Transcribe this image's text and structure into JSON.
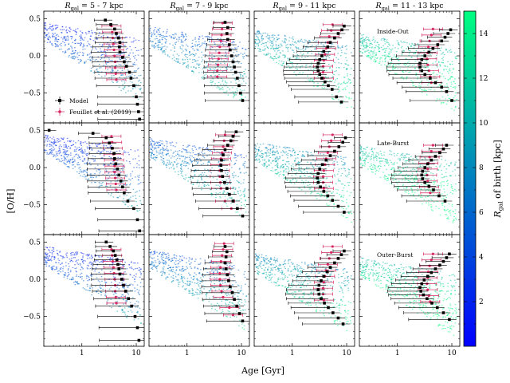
{
  "chart_data": {
    "type": "scatter",
    "xlabel": "Age [Gyr]",
    "ylabel": "[O/H]",
    "xscale": "log",
    "xlim": [
      0.2,
      14
    ],
    "ylim": [
      -0.9,
      0.6
    ],
    "x_ticks": [
      1,
      10
    ],
    "x_tick_labels": [
      "1",
      "10"
    ],
    "y_ticks": [
      -0.5,
      0.0,
      0.5
    ],
    "y_tick_labels": [
      "−0.5",
      "0.0",
      "0.5"
    ],
    "grid": false,
    "columns": [
      "R_gal = 5 - 7 kpc",
      "R_gal = 7 - 9 kpc",
      "R_gal = 9 - 11 kpc",
      "R_gal = 11 - 13 kpc"
    ],
    "columns_display": [
      {
        "pre": "R",
        "sub": "gal",
        "post": " = 5 - 7 kpc"
      },
      {
        "pre": "R",
        "sub": "gal",
        "post": " = 7 - 9 kpc"
      },
      {
        "pre": "R",
        "sub": "gal",
        "post": " = 9 - 11 kpc"
      },
      {
        "pre": "R",
        "sub": "gal",
        "post": " = 11 - 13 kpc"
      }
    ],
    "rows": [
      "Inside-Out",
      "Late-Burst",
      "Outer-Burst"
    ],
    "legend": {
      "placement": "lower-left of top-left panel",
      "entries": [
        "Model",
        "Feuillet et al. (2019)"
      ],
      "colors": [
        "#000000",
        "#d62760"
      ]
    },
    "colorbar": {
      "label": "R_gal of birth [kpc]",
      "label_display": {
        "pre": "R",
        "sub": "gal",
        "post": " of birth [kpc]"
      },
      "range": [
        0,
        15
      ],
      "ticks": [
        2,
        4,
        6,
        8,
        10,
        12,
        14
      ],
      "tick_labels": [
        "2",
        "4",
        "6",
        "8",
        "10",
        "12",
        "14"
      ],
      "colormap": "winter",
      "color_low": "#0000ff",
      "color_high": "#00ff80"
    },
    "series": [
      {
        "name": "Model",
        "panels": [
          [
            {
              "x": [
                2.7,
                3.4,
                4.0,
                4.3,
                4.7,
                5.0,
                4.9,
                5.0,
                5.6,
                6.0,
                6.6,
                7.5,
                8.0,
                9.0,
                10.0,
                10.5,
                11.0,
                11.5
              ],
              "y": [
                0.48,
                0.42,
                0.36,
                0.3,
                0.24,
                0.18,
                0.12,
                0.05,
                -0.02,
                -0.08,
                -0.14,
                -0.22,
                -0.3,
                -0.4,
                -0.55,
                -0.65,
                -0.75,
                -0.85
              ]
            },
            {
              "x": [
                5.0,
                5.6,
                5.4,
                5.6,
                6.0,
                6.2,
                6.6,
                7.0,
                7.4,
                7.8,
                8.4,
                9.0,
                9.6,
                10.5
              ],
              "y": [
                0.45,
                0.38,
                0.3,
                0.22,
                0.15,
                0.08,
                0.0,
                -0.08,
                -0.15,
                -0.22,
                -0.3,
                -0.4,
                -0.5,
                -0.6
              ]
            },
            {
              "x": [
                9.0,
                8.2,
                7.0,
                6.0,
                5.0,
                4.5,
                3.8,
                3.5,
                3.2,
                3.0,
                2.9,
                3.0,
                3.2,
                3.5,
                4.0,
                4.6,
                5.4,
                6.5,
                8.0
              ],
              "y": [
                0.4,
                0.35,
                0.3,
                0.24,
                0.18,
                0.12,
                0.06,
                0.0,
                -0.05,
                -0.1,
                -0.15,
                -0.2,
                -0.25,
                -0.3,
                -0.35,
                -0.4,
                -0.45,
                -0.55,
                -0.62
              ]
            },
            {
              "x": [
                9.5,
                8.5,
                7.5,
                6.5,
                5.5,
                4.5,
                3.8,
                3.2,
                2.8,
                2.6,
                2.6,
                2.8,
                3.2,
                4.0,
                5.0,
                6.5,
                8.0,
                10.0
              ],
              "y": [
                0.35,
                0.3,
                0.25,
                0.2,
                0.15,
                0.1,
                0.05,
                0.0,
                -0.05,
                -0.1,
                -0.15,
                -0.2,
                -0.25,
                -0.3,
                -0.36,
                -0.42,
                -0.48,
                -0.6
              ]
            }
          ],
          [
            {
              "x": [
                0.25,
                1.6,
                2.8,
                3.2,
                3.6,
                3.9,
                4.0,
                4.2,
                4.5,
                4.8,
                5.2,
                5.6,
                6.0,
                7.0,
                9.0,
                10.5,
                11.5
              ],
              "y": [
                0.5,
                0.46,
                0.4,
                0.33,
                0.26,
                0.19,
                0.12,
                0.05,
                -0.02,
                -0.1,
                -0.18,
                -0.26,
                -0.34,
                -0.45,
                -0.55,
                -0.7,
                -0.85
              ]
            },
            {
              "x": [
                8.0,
                7.0,
                6.4,
                5.6,
                5.0,
                4.6,
                4.3,
                4.2,
                4.3,
                4.5,
                4.9,
                5.4,
                6.0,
                7.0,
                8.4,
                10.5
              ],
              "y": [
                0.48,
                0.42,
                0.36,
                0.3,
                0.24,
                0.17,
                0.1,
                0.03,
                -0.04,
                -0.12,
                -0.2,
                -0.28,
                -0.36,
                -0.45,
                -0.55,
                -0.65
              ]
            },
            {
              "x": [
                9.5,
                8.5,
                7.2,
                6.0,
                5.0,
                4.2,
                3.6,
                3.2,
                3.0,
                2.9,
                3.0,
                3.3,
                3.8,
                4.5,
                5.5,
                7.0,
                9.0
              ],
              "y": [
                0.4,
                0.34,
                0.28,
                0.22,
                0.16,
                0.1,
                0.04,
                -0.02,
                -0.08,
                -0.14,
                -0.2,
                -0.26,
                -0.32,
                -0.38,
                -0.44,
                -0.52,
                -0.6
              ]
            },
            {
              "x": [
                8.0,
                7.0,
                6.0,
                5.0,
                4.2,
                3.6,
                3.2,
                2.9,
                2.8,
                2.9,
                3.2,
                3.8,
                4.6,
                5.8,
                7.5
              ],
              "y": [
                0.3,
                0.25,
                0.2,
                0.15,
                0.1,
                0.05,
                0.0,
                -0.05,
                -0.1,
                -0.15,
                -0.2,
                -0.25,
                -0.3,
                -0.38,
                -0.45
              ]
            }
          ],
          [
            {
              "x": [
                2.8,
                3.3,
                3.8,
                4.1,
                4.4,
                4.6,
                4.8,
                5.0,
                5.4,
                5.8,
                6.4,
                7.2,
                8.2,
                9.5,
                10.5,
                11.2
              ],
              "y": [
                0.5,
                0.44,
                0.38,
                0.32,
                0.26,
                0.2,
                0.14,
                0.07,
                0.0,
                -0.08,
                -0.16,
                -0.26,
                -0.36,
                -0.5,
                -0.65,
                -0.82
              ]
            },
            {
              "x": [
                5.0,
                5.4,
                5.2,
                5.0,
                5.2,
                5.5,
                5.8,
                6.2,
                6.8,
                7.4,
                8.2,
                9.2,
                10.5
              ],
              "y": [
                0.44,
                0.37,
                0.3,
                0.22,
                0.14,
                0.06,
                -0.02,
                -0.1,
                -0.18,
                -0.27,
                -0.36,
                -0.46,
                -0.56
              ]
            },
            {
              "x": [
                9.0,
                8.0,
                7.0,
                6.0,
                5.0,
                4.4,
                3.8,
                3.4,
                3.1,
                3.0,
                3.1,
                3.4,
                3.9,
                4.6,
                5.6,
                7.0,
                8.6
              ],
              "y": [
                0.38,
                0.33,
                0.28,
                0.22,
                0.16,
                0.1,
                0.04,
                -0.02,
                -0.08,
                -0.14,
                -0.2,
                -0.26,
                -0.32,
                -0.38,
                -0.45,
                -0.52,
                -0.6
              ]
            },
            {
              "x": [
                9.0,
                8.0,
                7.0,
                6.0,
                5.0,
                4.2,
                3.6,
                3.1,
                2.8,
                2.6,
                2.7,
                3.0,
                3.5,
                4.3,
                5.4,
                7.0,
                9.0
              ],
              "y": [
                0.34,
                0.29,
                0.24,
                0.19,
                0.14,
                0.09,
                0.04,
                -0.01,
                -0.06,
                -0.11,
                -0.16,
                -0.21,
                -0.26,
                -0.32,
                -0.38,
                -0.45,
                -0.54
              ]
            }
          ]
        ]
      },
      {
        "name": "Feuillet et al. (2019)",
        "panels": [
          [
            {
              "x": [
                3.5,
                3.6,
                3.7,
                3.8,
                3.9,
                4.0,
                4.1,
                4.1,
                4.2,
                4.3
              ],
              "y": [
                0.4,
                0.32,
                0.24,
                0.16,
                0.08,
                0.0,
                -0.08,
                -0.16,
                -0.24,
                -0.32
              ]
            },
            {
              "x": [
                4.5,
                4.4,
                4.3,
                4.2,
                4.0,
                3.9,
                3.8,
                3.7,
                3.6,
                3.6
              ],
              "y": [
                0.44,
                0.36,
                0.28,
                0.2,
                0.12,
                0.04,
                -0.04,
                -0.12,
                -0.2,
                -0.28
              ]
            },
            {
              "x": [
                5.5,
                5.2,
                4.8,
                4.5,
                4.2,
                4.0,
                3.8,
                3.7,
                3.7,
                3.8
              ],
              "y": [
                0.42,
                0.34,
                0.26,
                0.18,
                0.1,
                0.02,
                -0.06,
                -0.14,
                -0.22,
                -0.3
              ]
            },
            {
              "x": [
                4.5,
                4.2,
                3.9,
                3.7,
                3.6,
                3.5,
                3.6,
                3.8,
                4.0,
                4.2
              ],
              "y": [
                0.36,
                0.28,
                0.2,
                0.12,
                0.04,
                -0.04,
                -0.12,
                -0.2,
                -0.28,
                -0.36
              ]
            }
          ],
          [
            {
              "x": [
                3.5,
                3.6,
                3.7,
                3.8,
                3.9,
                4.0,
                4.0,
                4.1,
                4.2,
                4.3
              ],
              "y": [
                0.42,
                0.34,
                0.26,
                0.18,
                0.1,
                0.02,
                -0.06,
                -0.14,
                -0.22,
                -0.3
              ]
            },
            {
              "x": [
                5.0,
                4.8,
                4.6,
                4.4,
                4.2,
                4.1,
                4.0,
                4.0,
                4.1,
                4.2,
                5.0,
                6.5
              ],
              "y": [
                0.44,
                0.36,
                0.28,
                0.2,
                0.12,
                0.04,
                -0.04,
                -0.12,
                -0.2,
                -0.28,
                -0.45,
                -0.55
              ]
            },
            {
              "x": [
                5.5,
                5.2,
                4.8,
                4.5,
                4.2,
                4.0,
                3.8,
                3.7,
                3.7,
                3.8
              ],
              "y": [
                0.44,
                0.36,
                0.28,
                0.2,
                0.12,
                0.04,
                -0.04,
                -0.12,
                -0.2,
                -0.28
              ]
            },
            {
              "x": [
                4.5,
                4.2,
                3.9,
                3.7,
                3.6,
                3.5,
                3.6,
                3.8,
                4.0
              ],
              "y": [
                0.3,
                0.22,
                0.14,
                0.06,
                -0.02,
                -0.1,
                -0.18,
                -0.26,
                -0.34
              ]
            }
          ],
          [
            {
              "x": [
                3.5,
                3.6,
                3.7,
                3.8,
                3.9,
                4.0,
                4.1,
                4.1,
                4.2,
                4.3
              ],
              "y": [
                0.4,
                0.32,
                0.24,
                0.16,
                0.08,
                0.0,
                -0.08,
                -0.16,
                -0.24,
                -0.32
              ]
            },
            {
              "x": [
                4.8,
                4.6,
                4.4,
                4.2,
                4.1,
                4.0,
                4.0,
                4.1,
                4.3,
                4.6,
                6.0,
                7.0
              ],
              "y": [
                0.48,
                0.4,
                0.32,
                0.24,
                0.16,
                0.08,
                0.0,
                -0.08,
                -0.16,
                -0.24,
                -0.38,
                -0.48
              ]
            },
            {
              "x": [
                5.5,
                5.2,
                4.8,
                4.5,
                4.2,
                4.0,
                3.8,
                3.7,
                3.7,
                3.8
              ],
              "y": [
                0.44,
                0.36,
                0.28,
                0.2,
                0.12,
                0.04,
                -0.04,
                -0.12,
                -0.2,
                -0.28
              ]
            },
            {
              "x": [
                4.5,
                4.2,
                3.9,
                3.7,
                3.6,
                3.5,
                3.6,
                3.8,
                4.0
              ],
              "y": [
                0.34,
                0.26,
                0.18,
                0.1,
                0.02,
                -0.06,
                -0.14,
                -0.22,
                -0.3
              ]
            }
          ]
        ]
      }
    ]
  }
}
